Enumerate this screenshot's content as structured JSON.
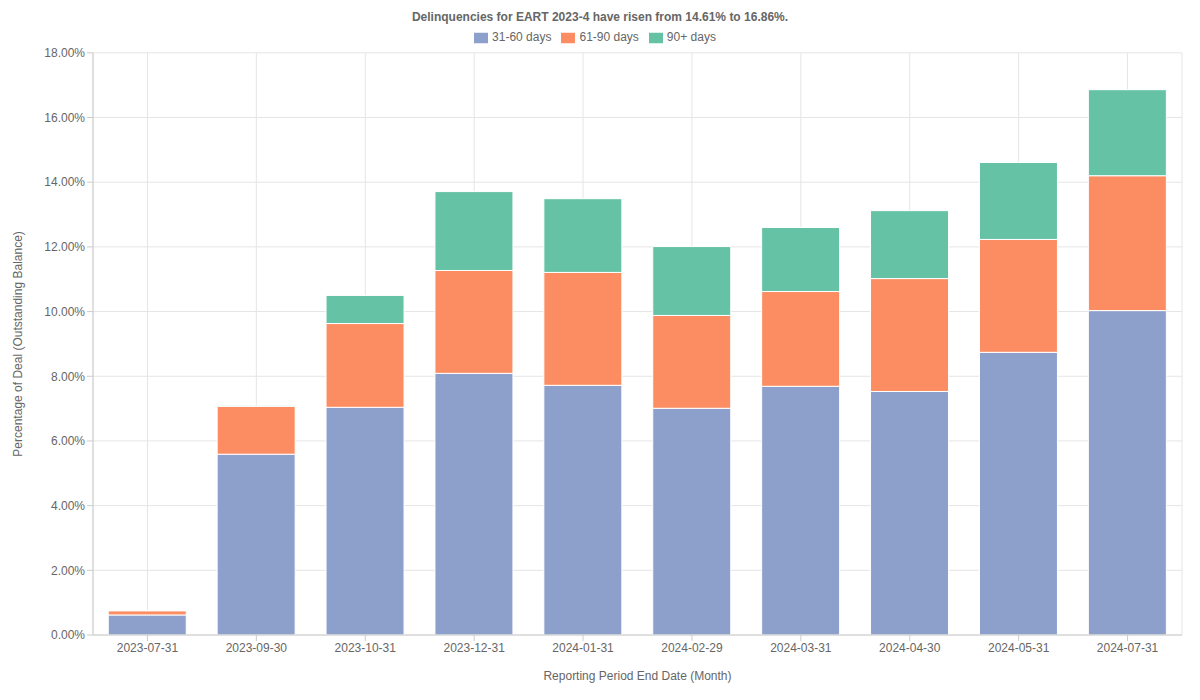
{
  "chart_data": {
    "type": "bar",
    "title": "Delinquencies for EART 2023-4 have risen from 14.61% to 16.86%.",
    "x_label": "Reporting Period End Date (Month)",
    "y_label": "Percentage of Deal (Outstanding Balance)",
    "categories": [
      "2023-07-31",
      "2023-09-30",
      "2023-10-31",
      "2023-12-31",
      "2024-01-31",
      "2024-02-29",
      "2024-03-31",
      "2024-04-30",
      "2024-05-31",
      "2024-07-31"
    ],
    "series": [
      {
        "name": "31-60 days",
        "color": "#8da0cb",
        "values": [
          0.62,
          5.59,
          7.04,
          8.09,
          7.72,
          7.01,
          7.69,
          7.53,
          8.74,
          10.03
        ]
      },
      {
        "name": "61-90 days",
        "color": "#fc8d62",
        "values": [
          0.13,
          1.48,
          2.59,
          3.18,
          3.49,
          2.87,
          2.93,
          3.49,
          3.49,
          4.17
        ]
      },
      {
        "name": "90+ days",
        "color": "#66c2a5",
        "values": [
          0.01,
          0.03,
          0.87,
          2.44,
          2.28,
          2.13,
          1.98,
          2.1,
          2.38,
          2.66
        ]
      }
    ],
    "ylim": [
      0,
      18
    ],
    "yticks": [
      {
        "value": 0,
        "label": "0.00%"
      },
      {
        "value": 2,
        "label": "2.00%"
      },
      {
        "value": 4,
        "label": "4.00%"
      },
      {
        "value": 6,
        "label": "6.00%"
      },
      {
        "value": 8,
        "label": "8.00%"
      },
      {
        "value": 10,
        "label": "10.00%"
      },
      {
        "value": 12,
        "label": "12.00%"
      },
      {
        "value": 14,
        "label": "14.00%"
      },
      {
        "value": 16,
        "label": "16.00%"
      },
      {
        "value": 18,
        "label": "18.00%"
      }
    ],
    "stacked": true,
    "grid": true,
    "legend": "top"
  }
}
